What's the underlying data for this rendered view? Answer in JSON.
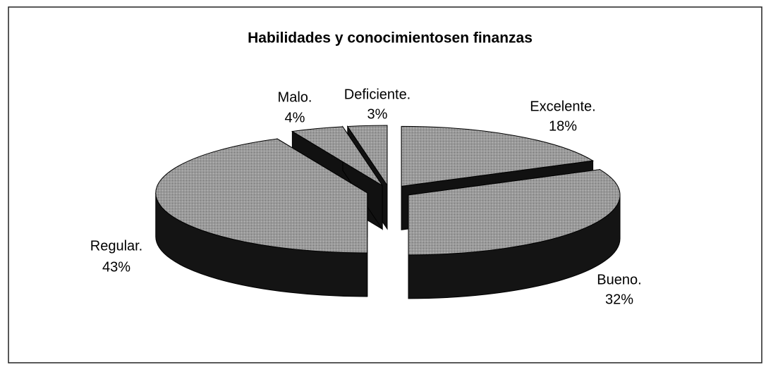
{
  "chart_data": {
    "type": "pie",
    "title": "Habilidades y conocimientosen finanzas",
    "categories": [
      "Excelente.",
      "Bueno.",
      "Regular.",
      "Malo.",
      "Deficiente."
    ],
    "values": [
      18,
      32,
      43,
      4,
      3
    ],
    "value_labels": [
      "18%",
      "32%",
      "43%",
      "4%",
      "3%"
    ]
  }
}
